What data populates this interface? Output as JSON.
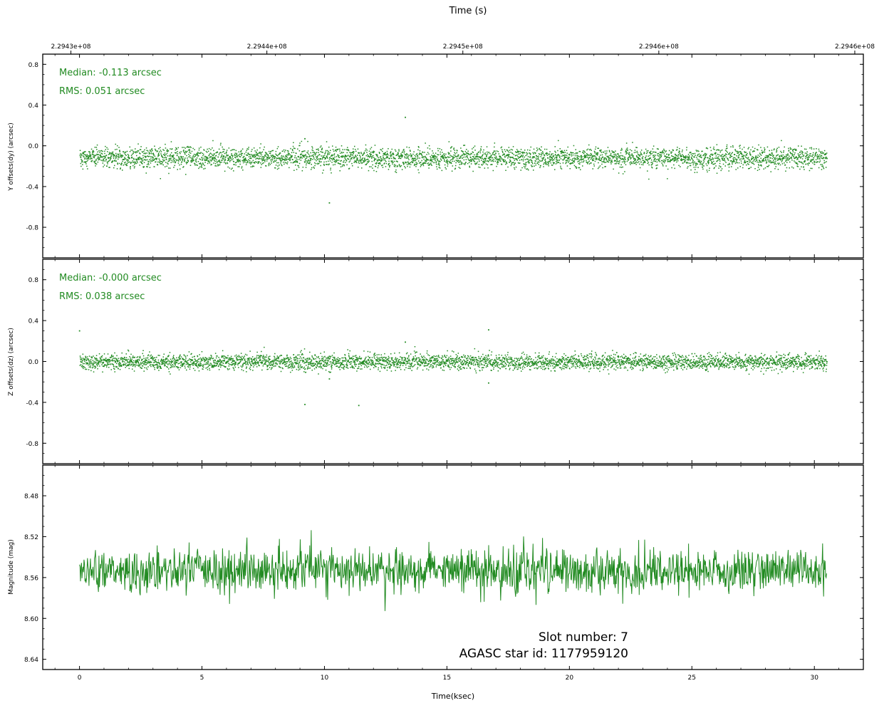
{
  "figure": {
    "top_axis_label": "Time (s)",
    "bottom_axis_label": "Time(ksec)",
    "slot_text": "Slot number: 7",
    "agasc_text": "AGASC star id: 1177959120",
    "series_color": "#228B22"
  },
  "chart_data": [
    {
      "type": "scatter",
      "panel": "dy",
      "ylabel": "Y offsets(dy) (arcsec)",
      "xlabel": "",
      "xlim": [
        -1.5,
        32
      ],
      "ylim": [
        -1.1,
        0.9
      ],
      "x_ticks": [
        "0",
        "5",
        "10",
        "15",
        "20",
        "25",
        "30"
      ],
      "y_ticks": [
        "0.8",
        "0.4",
        "0.0",
        "-0.4",
        "-0.8"
      ],
      "annotations": [
        "Median: -0.113 arcsec",
        "RMS: 0.051 arcsec"
      ],
      "x_range": [
        0,
        30.5
      ],
      "median": -0.113,
      "rms": 0.051,
      "outliers": [
        {
          "x": 13.3,
          "y": 0.28
        },
        {
          "x": 10.2,
          "y": -0.56
        },
        {
          "x": 9.2,
          "y": 0.07
        }
      ]
    },
    {
      "type": "scatter",
      "panel": "dz",
      "ylabel": "Z offsets(dz) (arcsec)",
      "xlabel": "",
      "xlim": [
        -1.5,
        32
      ],
      "ylim": [
        -1.0,
        1.0
      ],
      "x_ticks": [
        "0",
        "5",
        "10",
        "15",
        "20",
        "25",
        "30"
      ],
      "y_ticks": [
        "0.8",
        "0.4",
        "0.0",
        "-0.4",
        "-0.8"
      ],
      "annotations": [
        "Median: -0.000 arcsec",
        "RMS: 0.038 arcsec"
      ],
      "x_range": [
        0,
        30.5
      ],
      "median": 0.0,
      "rms": 0.038,
      "outliers": [
        {
          "x": 0.0,
          "y": 0.3
        },
        {
          "x": 16.7,
          "y": 0.31
        },
        {
          "x": 13.3,
          "y": 0.19
        },
        {
          "x": 9.2,
          "y": -0.42
        },
        {
          "x": 11.4,
          "y": -0.43
        },
        {
          "x": 10.2,
          "y": -0.17
        },
        {
          "x": 16.7,
          "y": -0.21
        }
      ]
    },
    {
      "type": "line",
      "panel": "mag",
      "ylabel": "Magnitude (mag)",
      "xlabel": "Time(ksec)",
      "xlim": [
        -1.5,
        32
      ],
      "ylim": [
        8.65,
        8.45
      ],
      "y_inverted": true,
      "x_ticks": [
        "0",
        "5",
        "10",
        "15",
        "20",
        "25",
        "30"
      ],
      "y_ticks": [
        "8.48",
        "8.52",
        "8.56",
        "8.60",
        "8.64"
      ],
      "x_range": [
        0,
        30.5
      ],
      "mean": 8.553,
      "std": 0.011
    }
  ],
  "top_axis": {
    "ticks": [
      "2.2943e+08",
      "2.2944e+08",
      "2.2945e+08",
      "2.2946e+08",
      "2.2946e+08"
    ],
    "tick_positions_ksec": [
      -0.35,
      7.65,
      15.65,
      23.65,
      31.65
    ]
  }
}
